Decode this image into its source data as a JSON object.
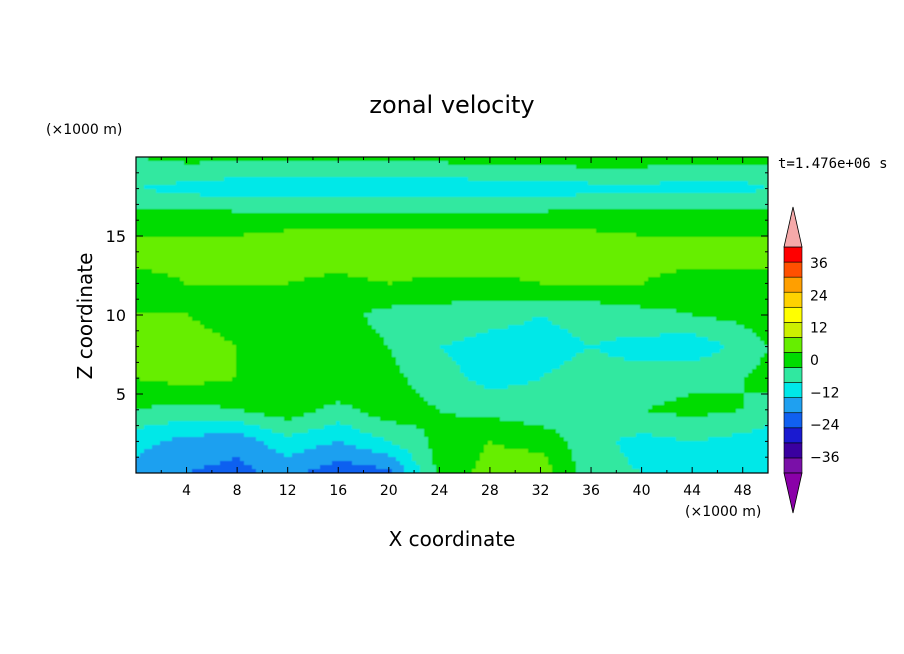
{
  "chart_data": {
    "type": "heatmap",
    "title": "zonal velocity",
    "xlabel": "X coordinate",
    "ylabel": "Z coordinate",
    "x_unit": "(×1000 m)",
    "y_unit": "(×1000 m)",
    "time_label": "t=1.476e+06 s",
    "xlim": [
      0,
      50
    ],
    "ylim": [
      0,
      20
    ],
    "x_ticks": [
      4,
      8,
      12,
      16,
      20,
      24,
      28,
      32,
      36,
      40,
      44,
      48
    ],
    "y_ticks": [
      5,
      10,
      15
    ],
    "colorbar": {
      "range": [
        -42,
        42
      ],
      "step": 6,
      "tick_values": [
        36,
        24,
        12,
        0,
        -12,
        -24,
        -36
      ],
      "tick_labels": [
        "36",
        "24",
        "12",
        "0",
        "−12",
        "−24",
        "−36"
      ],
      "extend_both": true,
      "colors": [
        "#7a10a8",
        "#3a00a0",
        "#1a1ad0",
        "#1060f0",
        "#1fa0f0",
        "#00e8e8",
        "#30e8a0",
        "#00dc00",
        "#66ee00",
        "#ccf000",
        "#ffff00",
        "#ffd200",
        "#ff9f00",
        "#ff5000",
        "#ff0000"
      ],
      "max_color": "#f5a9a9",
      "min_color": "#8a00a8"
    },
    "field": {
      "x": [
        0,
        4,
        8,
        12,
        16,
        20,
        24,
        28,
        32,
        36,
        40,
        44,
        48,
        50
      ],
      "z": [
        0,
        2,
        4,
        6,
        8,
        10,
        12,
        14,
        16,
        18,
        20
      ],
      "u": [
        [
          -14,
          -18,
          -20,
          -16,
          -22,
          -20,
          2,
          8,
          10,
          -4,
          -6,
          -6,
          -8,
          -10
        ],
        [
          -10,
          -14,
          -16,
          -8,
          -12,
          -6,
          2,
          6,
          4,
          -4,
          -8,
          -6,
          -8,
          -10
        ],
        [
          0,
          -2,
          0,
          4,
          -2,
          4,
          0,
          -2,
          -4,
          -2,
          0,
          2,
          0,
          -2
        ],
        [
          6,
          8,
          6,
          4,
          6,
          2,
          -4,
          -8,
          -6,
          -4,
          -4,
          -2,
          0,
          2
        ],
        [
          10,
          8,
          6,
          4,
          4,
          0,
          -6,
          -8,
          -8,
          -6,
          -8,
          -10,
          -4,
          0
        ],
        [
          6,
          6,
          4,
          4,
          2,
          -2,
          -2,
          -4,
          -6,
          -4,
          -2,
          0,
          2,
          4
        ],
        [
          4,
          6,
          6,
          6,
          4,
          6,
          4,
          4,
          6,
          6,
          6,
          4,
          4,
          4
        ],
        [
          8,
          8,
          8,
          10,
          10,
          12,
          12,
          12,
          10,
          10,
          8,
          8,
          8,
          8
        ],
        [
          4,
          4,
          4,
          4,
          4,
          4,
          4,
          4,
          4,
          4,
          4,
          4,
          4,
          4
        ],
        [
          -6,
          -8,
          -10,
          -10,
          -10,
          -10,
          -10,
          -10,
          -10,
          -8,
          -8,
          -8,
          -8,
          -6
        ],
        [
          0,
          2,
          2,
          2,
          2,
          2,
          2,
          4,
          4,
          4,
          4,
          2,
          2,
          2
        ]
      ]
    }
  }
}
